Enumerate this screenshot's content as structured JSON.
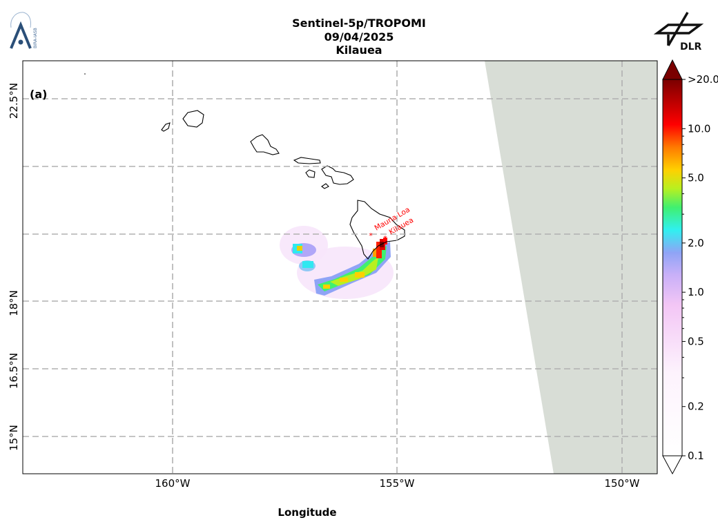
{
  "header": {
    "title_line1": "Sentinel-5p/TROPOMI",
    "title_line2": "09/04/2025",
    "title_line3": "Kilauea"
  },
  "logos": {
    "left": "bira-iasb-logo",
    "left_text": "BIRA-IASB",
    "right": "dlr-logo",
    "right_text": "DLR"
  },
  "map": {
    "panel_label": "(a)",
    "xlabel": "Longitude",
    "lon_ticks": [
      "160°W",
      "155°W",
      "150°W"
    ],
    "lat_ticks": [
      "22.5°N",
      "18°N",
      "16.5°N",
      "15°N"
    ],
    "volcanoes": [
      {
        "name": "Mauna Loa",
        "lon": -155.6,
        "lat": 19.48
      },
      {
        "name": "Kilauea",
        "lon": -155.29,
        "lat": 19.42
      }
    ],
    "marker_color": "#ff0000",
    "no_data_color": "#d8ddd6"
  },
  "colorbar": {
    "scale": "log",
    "range": [
      0.1,
      20
    ],
    "extend": "both",
    "ticks": [
      "0.1",
      "0.2",
      "0.5",
      "1.0",
      "2.0",
      "5.0",
      "10.0",
      ">20.0"
    ]
  }
}
